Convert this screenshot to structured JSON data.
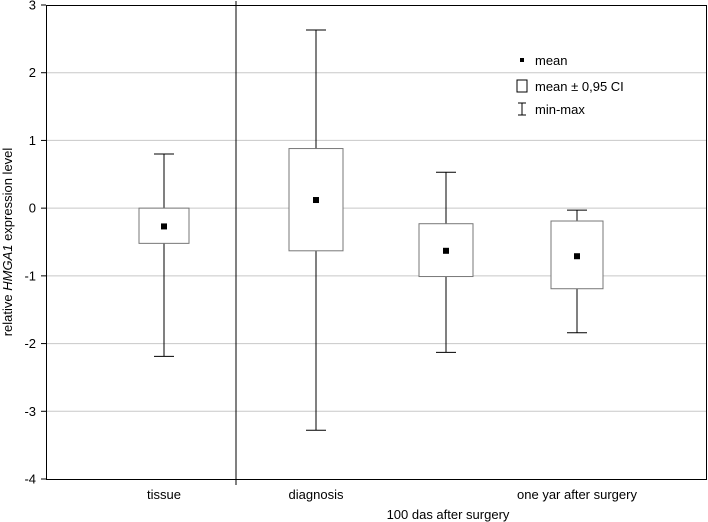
{
  "chart_data": {
    "type": "box",
    "ylabel_parts": [
      "relative ",
      "HMGA1",
      " expression level"
    ],
    "xlabel": "100 das after surgery",
    "ylim": [
      -4,
      3
    ],
    "yticks": [
      3,
      2,
      1,
      0,
      -1,
      -2,
      -3,
      -4
    ],
    "grid": true,
    "legend_position": "top-right",
    "legend": [
      {
        "symbol": "point",
        "label": "mean"
      },
      {
        "symbol": "box",
        "label": "mean ± 0,95 CI"
      },
      {
        "symbol": "whisker",
        "label": "min-max"
      }
    ],
    "categories": [
      {
        "label": "tissue",
        "mean": -0.27,
        "ci_low": -0.52,
        "ci_high": 0.0,
        "min": -2.19,
        "max": 0.8
      },
      {
        "label": "diagnosis",
        "mean": 0.12,
        "ci_low": -0.63,
        "ci_high": 0.88,
        "min": -3.28,
        "max": 2.63
      },
      {
        "label": "",
        "mean": -0.63,
        "ci_low": -1.01,
        "ci_high": -0.23,
        "min": -2.13,
        "max": 0.53
      },
      {
        "label": "one yar after surgery",
        "mean": -0.71,
        "ci_low": -1.19,
        "ci_high": -0.19,
        "min": -1.84,
        "max": -0.03
      }
    ]
  }
}
